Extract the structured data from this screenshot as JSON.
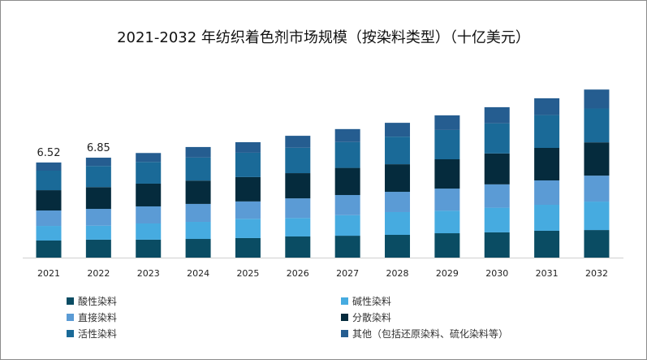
{
  "chart_data": {
    "type": "bar",
    "stacked": true,
    "title": "2021-2032 年纺织着色剂市场规模（按染料类型）（十亿美元）",
    "xlabel": "",
    "ylabel": "",
    "ylim": [
      0,
      11.6
    ],
    "grid": false,
    "legend_position": "bottom",
    "categories": [
      "2021",
      "2022",
      "2023",
      "2024",
      "2025",
      "2026",
      "2027",
      "2028",
      "2029",
      "2030",
      "2031",
      "2032"
    ],
    "series": [
      {
        "name": "酸性染料",
        "color": "#0a4c63",
        "values": [
          1.17,
          1.23,
          1.23,
          1.28,
          1.34,
          1.45,
          1.5,
          1.56,
          1.67,
          1.73,
          1.84,
          1.89
        ]
      },
      {
        "name": "碱性染料",
        "color": "#46abe0",
        "values": [
          1.0,
          0.96,
          1.11,
          1.17,
          1.32,
          1.26,
          1.41,
          1.56,
          1.54,
          1.69,
          1.78,
          1.95
        ]
      },
      {
        "name": "直接染料",
        "color": "#5b9bd5",
        "values": [
          1.06,
          1.15,
          1.17,
          1.23,
          1.19,
          1.35,
          1.38,
          1.39,
          1.52,
          1.6,
          1.67,
          1.78
        ]
      },
      {
        "name": "分散染料",
        "color": "#052b3d",
        "values": [
          1.39,
          1.49,
          1.56,
          1.6,
          1.67,
          1.73,
          1.86,
          1.89,
          2.01,
          2.12,
          2.23,
          2.28
        ]
      },
      {
        "name": "活性染料",
        "color": "#1a6a98",
        "values": [
          1.34,
          1.45,
          1.49,
          1.58,
          1.67,
          1.74,
          1.77,
          1.89,
          2.01,
          2.06,
          2.25,
          2.32
        ]
      },
      {
        "name": "其他（包括还原染料、硫化染料等）",
        "color": "#255d90",
        "values": [
          0.56,
          0.57,
          0.61,
          0.72,
          0.72,
          0.82,
          0.89,
          0.95,
          1.0,
          1.11,
          1.15,
          1.3
        ]
      }
    ],
    "data_labels": [
      {
        "category": "2021",
        "text": "6.52"
      },
      {
        "category": "2022",
        "text": "6.85"
      }
    ]
  }
}
